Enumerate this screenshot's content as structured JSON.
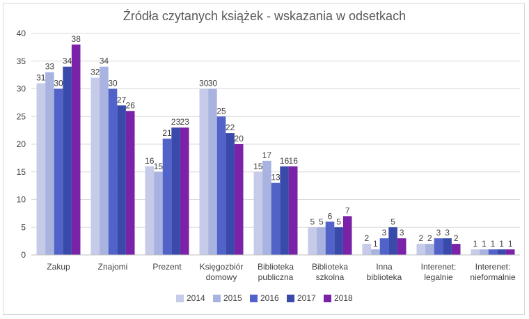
{
  "chart_data": {
    "type": "bar",
    "title": "Źródła czytanych książek - wskazania w odsetkach",
    "xlabel": "",
    "ylabel": "",
    "ylim": [
      0,
      40
    ],
    "yticks": [
      0,
      5,
      10,
      15,
      20,
      25,
      30,
      35,
      40
    ],
    "grid": true,
    "legend_position": "bottom",
    "categories": [
      [
        "Zakup"
      ],
      [
        "Znajomi"
      ],
      [
        "Prezent"
      ],
      [
        "Księgozbiór",
        "domowy"
      ],
      [
        "Biblioteka",
        "publiczna"
      ],
      [
        "Biblioteka",
        "szkolna"
      ],
      [
        "Inna",
        "biblioteka"
      ],
      [
        "Interenet:",
        "legalnie"
      ],
      [
        "Interenet:",
        "nieformalnie"
      ]
    ],
    "series": [
      {
        "name": "2014",
        "color": "#c5cbe8",
        "values": [
          31,
          32,
          16,
          30,
          15,
          5,
          2,
          2,
          1
        ]
      },
      {
        "name": "2015",
        "color": "#a9b3e0",
        "values": [
          33,
          34,
          15,
          30,
          17,
          5,
          1,
          2,
          1
        ]
      },
      {
        "name": "2016",
        "color": "#5163c8",
        "values": [
          30,
          30,
          21,
          25,
          13,
          6,
          3,
          3,
          1
        ]
      },
      {
        "name": "2017",
        "color": "#3a4aaa",
        "values": [
          34,
          27,
          23,
          22,
          16,
          5,
          5,
          3,
          1
        ]
      },
      {
        "name": "2018",
        "color": "#7a22a8",
        "values": [
          38,
          26,
          23,
          20,
          16,
          7,
          3,
          2,
          1
        ]
      }
    ]
  }
}
